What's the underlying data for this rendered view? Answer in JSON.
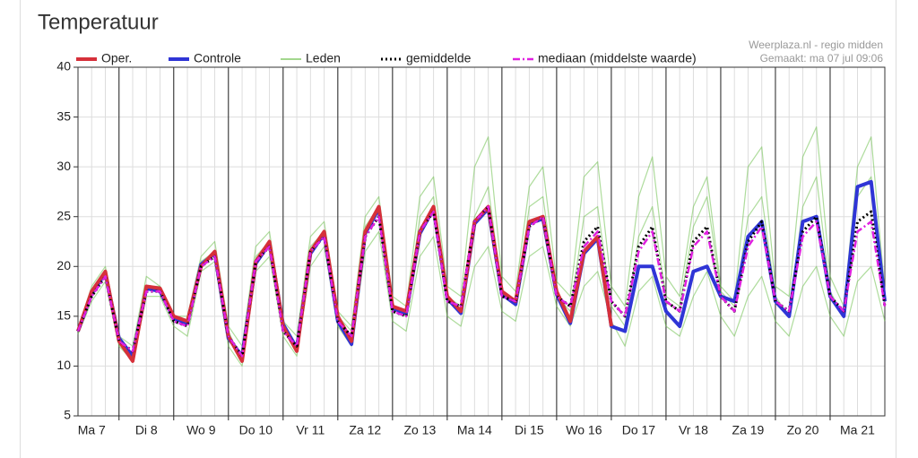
{
  "chart_data": {
    "type": "line",
    "title": "Temperatuur",
    "source": "Weerplaza.nl - regio midden",
    "created": "Gemaakt: ma 07 jul 09:06",
    "x": [
      0.25,
      0.5,
      0.75,
      1,
      1.25,
      1.5,
      1.75,
      2,
      2.25,
      2.5,
      2.75,
      3,
      3.25,
      3.5,
      3.75,
      4,
      4.25,
      4.5,
      4.75,
      5,
      5.25,
      5.5,
      5.75,
      6,
      6.25,
      6.5,
      6.75,
      7,
      7.25,
      7.5,
      7.75,
      8,
      8.25,
      8.5,
      8.75,
      9,
      9.25,
      9.5,
      9.75,
      10,
      10.25,
      10.5,
      10.75,
      11,
      11.25,
      11.5,
      11.75,
      12,
      12.25,
      12.5,
      12.75,
      13,
      13.25,
      13.5,
      13.75,
      14,
      14.25,
      14.5,
      14.75,
      15
    ],
    "xlim": [
      0.25,
      15
    ],
    "xticks": [
      {
        "value": 0.5,
        "label": "Ma 7"
      },
      {
        "value": 1.5,
        "label": "Di 8"
      },
      {
        "value": 2.5,
        "label": "Wo 9"
      },
      {
        "value": 3.5,
        "label": "Do 10"
      },
      {
        "value": 4.5,
        "label": "Vr 11"
      },
      {
        "value": 5.5,
        "label": "Za 12"
      },
      {
        "value": 6.5,
        "label": "Zo 13"
      },
      {
        "value": 7.5,
        "label": "Ma 14"
      },
      {
        "value": 8.5,
        "label": "Di 15"
      },
      {
        "value": 9.5,
        "label": "Wo 16"
      },
      {
        "value": 10.5,
        "label": "Do 17"
      },
      {
        "value": 11.5,
        "label": "Vr 18"
      },
      {
        "value": 12.5,
        "label": "Za 19"
      },
      {
        "value": 13.5,
        "label": "Zo 20"
      },
      {
        "value": 14.5,
        "label": "Ma 21"
      }
    ],
    "ylim": [
      5,
      40
    ],
    "yticks": [
      5,
      10,
      15,
      20,
      25,
      30,
      35,
      40
    ],
    "grid": true,
    "series": [
      {
        "name": "Oper.",
        "color": "#d6303a",
        "style": "thick",
        "values": [
          13.5,
          17.5,
          19.5,
          12.5,
          10.5,
          18,
          17.8,
          15,
          14.5,
          20,
          21.5,
          13,
          10.5,
          20.5,
          22.5,
          14,
          11.5,
          21.5,
          23.5,
          15,
          12.5,
          23.5,
          26,
          16,
          15.5,
          23.5,
          26,
          17,
          15.5,
          24.5,
          26,
          17.5,
          16.5,
          24.5,
          25,
          17.5,
          14.5,
          21.5,
          23,
          14,
          null,
          null,
          null,
          null,
          null,
          null,
          null,
          null,
          null,
          null,
          null,
          null,
          null,
          null,
          null,
          null,
          null,
          null,
          null,
          null
        ]
      },
      {
        "name": "Controle",
        "color": "#2f35d6",
        "style": "thick",
        "values": [
          13.5,
          17.3,
          19.3,
          12.8,
          11,
          17.8,
          17.5,
          14.8,
          14.3,
          20.2,
          21.3,
          12.8,
          11,
          20.3,
          22.3,
          14.2,
          11.8,
          21.3,
          23.3,
          14.5,
          12.2,
          23.3,
          25.8,
          15.8,
          15.3,
          23.3,
          25.8,
          16.8,
          15.3,
          24.3,
          25.8,
          17.2,
          16.2,
          24.3,
          24.8,
          17.2,
          14.3,
          21.3,
          22.8,
          14,
          13.5,
          20,
          20,
          15.5,
          14,
          19.5,
          20,
          17,
          16.5,
          23,
          24.5,
          16.5,
          15,
          24.5,
          25,
          17,
          15,
          28,
          28.5,
          16.5
        ]
      },
      {
        "name": "Leden",
        "color": "#6cbf4a",
        "style": "thin",
        "members": [
          [
            13.8,
            18,
            20,
            13,
            12,
            19,
            18,
            15,
            15,
            21,
            22.5,
            14,
            12,
            22,
            23.5,
            14.5,
            13,
            23,
            24.5,
            15.5,
            14,
            25,
            27,
            17,
            16,
            27,
            29,
            18,
            17,
            30,
            33,
            19,
            17.5,
            28,
            30,
            18.5,
            17,
            29,
            30.5,
            18,
            16,
            27,
            31,
            19,
            17,
            26,
            29,
            18,
            16.5,
            30,
            32,
            18,
            17,
            31,
            34,
            19,
            16,
            30,
            33,
            17.5
          ],
          [
            13.2,
            16.5,
            18.5,
            12,
            10.5,
            17,
            17,
            14,
            13,
            19.5,
            20.5,
            12,
            10,
            19.5,
            21,
            13,
            11,
            20,
            22,
            14,
            12,
            21.5,
            23.5,
            14.5,
            13.5,
            21,
            23,
            15,
            14,
            20,
            22,
            15.5,
            14.5,
            21,
            22,
            16,
            14,
            18,
            19.5,
            14.5,
            12,
            17.5,
            19,
            14,
            13,
            17,
            19.5,
            15,
            13,
            17,
            19,
            14.5,
            13,
            18,
            20,
            15,
            13,
            18.5,
            20,
            14.5
          ],
          [
            13.5,
            17.5,
            19.5,
            12.5,
            11,
            18,
            18,
            15,
            14.5,
            20.5,
            21.5,
            13.5,
            10.5,
            21,
            22.5,
            14,
            12,
            22,
            23.5,
            15,
            13.5,
            24,
            26,
            16,
            15,
            25,
            27,
            17,
            16,
            25,
            28,
            17.5,
            16,
            26,
            27,
            17,
            15.5,
            25,
            26,
            16,
            14,
            23,
            26,
            17,
            16,
            24,
            27,
            17.5,
            16,
            25,
            27,
            17,
            15,
            26,
            29,
            17.5,
            15,
            27,
            29,
            16.5
          ]
        ]
      },
      {
        "name": "gemiddelde",
        "color": "#000000",
        "style": "dotted",
        "values": [
          13.5,
          17,
          19,
          12.5,
          11.5,
          17.5,
          17.5,
          14.5,
          14,
          20,
          21,
          13,
          11,
          20.5,
          22,
          13.5,
          12,
          21.5,
          23,
          14.5,
          13,
          23,
          25,
          15.5,
          15,
          23.5,
          25.5,
          16.5,
          16,
          24.5,
          26,
          17,
          16.5,
          24,
          25,
          17,
          16,
          22.5,
          24,
          16.5,
          15,
          22,
          24,
          16.5,
          15.5,
          22.5,
          24,
          17,
          15.5,
          22.5,
          24.5,
          16.5,
          15.5,
          23.5,
          25,
          17,
          15.5,
          24.5,
          25.5,
          16
        ]
      },
      {
        "name": "mediaan (middelste waarde)",
        "color": "#e020e0",
        "style": "dashdot",
        "values": [
          13.5,
          17,
          19,
          12.5,
          11.5,
          17.5,
          17.5,
          14.5,
          14,
          20,
          21,
          13,
          11,
          20.5,
          22,
          13.5,
          12,
          21.5,
          23,
          14.5,
          13,
          23,
          25,
          15.5,
          15,
          23.5,
          25.5,
          16.5,
          16,
          24.5,
          26,
          17,
          16.5,
          24,
          25,
          17,
          16,
          22,
          23.5,
          16.5,
          15,
          21.5,
          23.5,
          16.5,
          15.5,
          22,
          23.5,
          17,
          15.5,
          22,
          24,
          16.5,
          15.5,
          23,
          24.5,
          17,
          15.5,
          23.5,
          24.5,
          16
        ]
      }
    ]
  }
}
